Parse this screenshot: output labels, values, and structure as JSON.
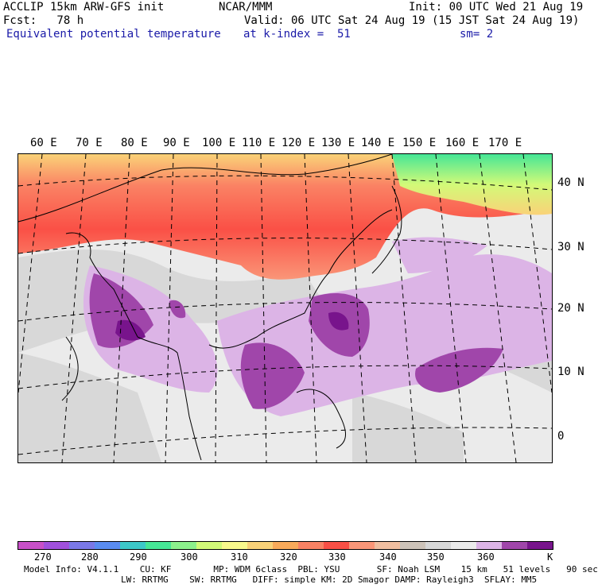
{
  "header": {
    "left1": "ACCLIP 15km ARW-GFS init",
    "left2": "Fcst:   78 h",
    "left3": "Equivalent potential temperature",
    "center": "NCAR/MMM",
    "init": "Init: 00 UTC Wed 21 Aug 19",
    "valid": "Valid: 06 UTC Sat 24 Aug 19 (15 JST Sat 24 Aug 19)",
    "level": "at k-index =  51",
    "smooth": "sm= 2"
  },
  "longitudes": [
    "60 E",
    "70 E",
    "80 E",
    "90 E",
    "100 E",
    "110 E",
    "120 E",
    "130 E",
    "140 E",
    "150 E",
    "160 E",
    "170 E"
  ],
  "latitudes": [
    "40 N",
    "30 N",
    "20 N",
    "10 N",
    "0"
  ],
  "colorbar": {
    "colors": [
      "#c850c8",
      "#a050dc",
      "#7a78e6",
      "#5a8cf0",
      "#3cc8c8",
      "#46e696",
      "#8cf08c",
      "#d2fa78",
      "#fafa8c",
      "#fad278",
      "#faaa5a",
      "#fa8264",
      "#fa5046",
      "#fa9678",
      "#f0bea0",
      "#cdc3b9",
      "#d7d7d7",
      "#ebebeb",
      "#dcb4e6",
      "#a046aa",
      "#78148c"
    ],
    "ticks": [
      "270",
      "280",
      "290",
      "300",
      "310",
      "320",
      "330",
      "340",
      "350",
      "360"
    ],
    "unit": "K"
  },
  "footer": {
    "line1": "Model Info: V4.1.1    CU: KF        MP: WDM 6class  PBL: YSU       SF: Noah LSM    15 km   51 levels   90 sec",
    "line2": "LW: RRTMG    SW: RRTMG   DIFF: simple KM: 2D Smagor DAMP: Rayleigh3  SFLAY: MM5"
  }
}
